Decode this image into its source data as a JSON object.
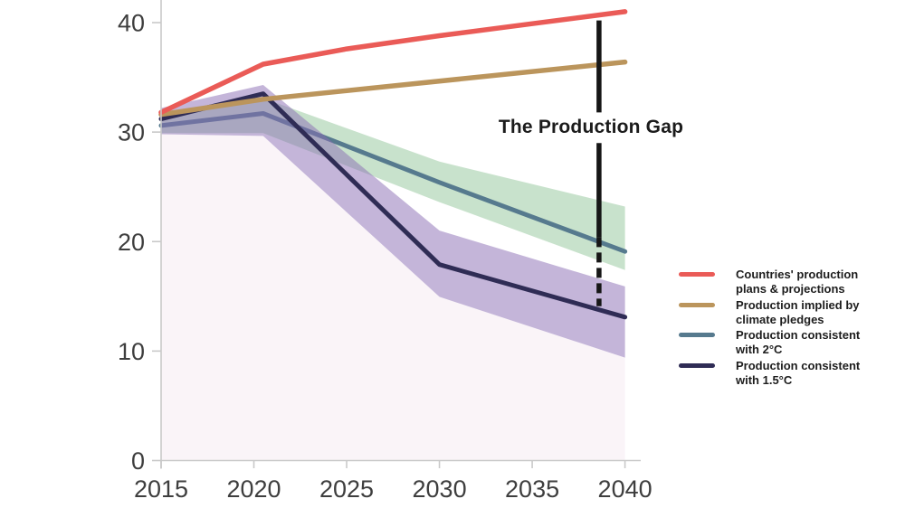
{
  "chart_data": {
    "type": "line",
    "title": "The Production Gap",
    "x_axis": {
      "min": 2015,
      "max": 2040,
      "ticks": [
        2015,
        2020,
        2025,
        2030,
        2035,
        2040
      ]
    },
    "y_axis": {
      "min": 0,
      "max": 40,
      "ticks": [
        0,
        10,
        20,
        30,
        40
      ]
    },
    "axis_color": "#c9c9c9",
    "tick_label_color": "#3e3e3e",
    "area_under": {
      "name": "area-below-1.5C-band",
      "color": "#faf4f8",
      "upper": [
        [
          2015,
          29.8
        ],
        [
          2020.5,
          29.65
        ],
        [
          2030,
          14.95
        ],
        [
          2040,
          9.4
        ]
      ]
    },
    "bands": [
      {
        "name": "2C-uncertainty-band",
        "color": "rgba(145,197,153,0.5)",
        "upper": [
          [
            2015,
            31.5
          ],
          [
            2020.5,
            33.1
          ],
          [
            2030,
            27.3
          ],
          [
            2040,
            23.2
          ]
        ],
        "lower": [
          [
            2015,
            29.9
          ],
          [
            2020.5,
            29.9
          ],
          [
            2030,
            23.6
          ],
          [
            2040,
            17.4
          ]
        ]
      },
      {
        "name": "1.5C-uncertainty-band",
        "color": "rgba(137,107,179,0.5)",
        "upper": [
          [
            2015,
            32.2
          ],
          [
            2020.5,
            34.3
          ],
          [
            2030,
            21.0
          ],
          [
            2040,
            15.9
          ]
        ],
        "lower": [
          [
            2015,
            29.8
          ],
          [
            2020.5,
            29.65
          ],
          [
            2030,
            14.95
          ],
          [
            2040,
            9.4
          ]
        ]
      }
    ],
    "series": [
      {
        "name": "Production consistent with 2°C",
        "color": "#567a8e",
        "width": 5,
        "points": [
          [
            2015,
            30.6
          ],
          [
            2020.5,
            31.7
          ],
          [
            2030,
            25.4
          ],
          [
            2040,
            19.1
          ]
        ]
      },
      {
        "name": "Production consistent with 1.5°C",
        "color": "#2f2c55",
        "width": 5,
        "points": [
          [
            2015,
            31.2
          ],
          [
            2020.5,
            33.5
          ],
          [
            2030,
            17.9
          ],
          [
            2040,
            13.1
          ]
        ]
      },
      {
        "name": "Production implied by climate pledges",
        "color": "#bb955c",
        "width": 5.5,
        "points": [
          [
            2015,
            31.6
          ],
          [
            2020.5,
            33.0
          ],
          [
            2040,
            36.4
          ]
        ]
      },
      {
        "name": "Countries' production plans & projections",
        "color": "#ea5b57",
        "width": 5.5,
        "points": [
          [
            2015,
            31.8
          ],
          [
            2020.5,
            36.2
          ],
          [
            2025,
            37.6
          ],
          [
            2030,
            38.8
          ],
          [
            2035,
            39.9
          ],
          [
            2040,
            41.0
          ]
        ]
      }
    ],
    "gap_line": {
      "x": 2038.6,
      "color": "#161616",
      "width": 5.5,
      "label": "The Production Gap",
      "solid_segments": [
        [
          40.2,
          31.8
        ],
        [
          29.0,
          20.4
        ]
      ],
      "dashed_segment": [
        20.4,
        14.1
      ],
      "dash_pattern": "11 6"
    },
    "legend": [
      {
        "lines": [
          "Countries' production",
          "plans & projections"
        ],
        "color": "#ea5b57"
      },
      {
        "lines": [
          "Production implied by",
          "climate pledges"
        ],
        "color": "#bb955c"
      },
      {
        "lines": [
          "Production consistent",
          "with 2°C"
        ],
        "color": "#567a8e"
      },
      {
        "lines": [
          "Production consistent",
          "with 1.5°C"
        ],
        "color": "#2f2c55"
      }
    ]
  }
}
